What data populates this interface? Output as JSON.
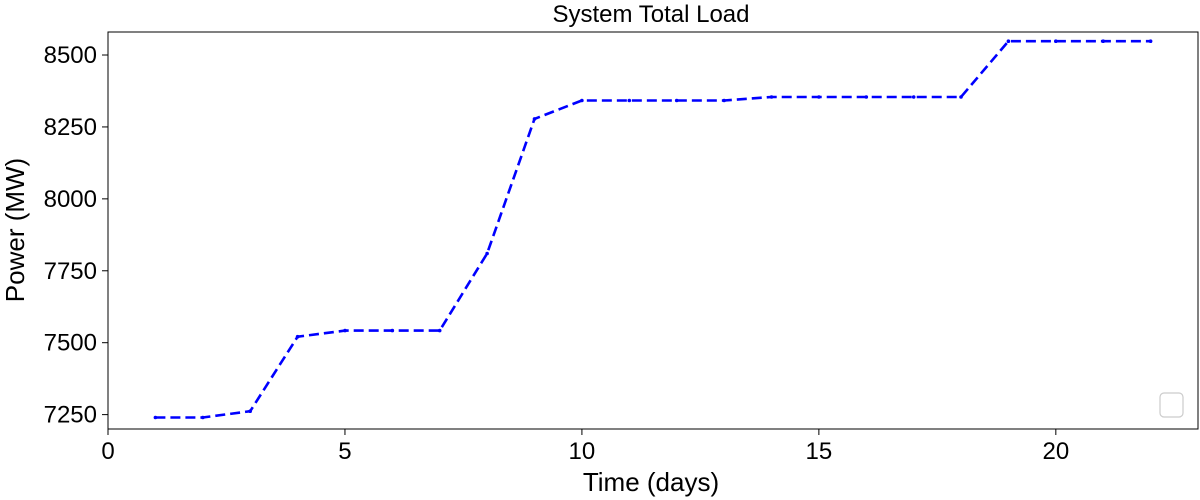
{
  "chart_data": {
    "type": "line",
    "title": "System Total Load",
    "xlabel": "Time (days)",
    "ylabel": "Power (MW)",
    "xlim": [
      0,
      23
    ],
    "ylim": [
      7200,
      8580
    ],
    "xticks": [
      0,
      5,
      10,
      15,
      20
    ],
    "yticks": [
      7250,
      7500,
      7750,
      8000,
      8250,
      8500
    ],
    "grid": false,
    "legend": "lower-right, empty",
    "series": [
      {
        "color": "#0000ff",
        "line_style": "dashed",
        "marker": "dot",
        "x": [
          1,
          2,
          3,
          4,
          5,
          6,
          7,
          8,
          9,
          10,
          11,
          12,
          13,
          14,
          15,
          16,
          17,
          18,
          19,
          20,
          21,
          22
        ],
        "values": [
          7240,
          7240,
          7262,
          7521,
          7542,
          7542,
          7542,
          7810,
          8278,
          8342,
          8342,
          8342,
          8342,
          8354,
          8354,
          8354,
          8354,
          8354,
          8548,
          8548,
          8548,
          8548
        ]
      }
    ]
  }
}
